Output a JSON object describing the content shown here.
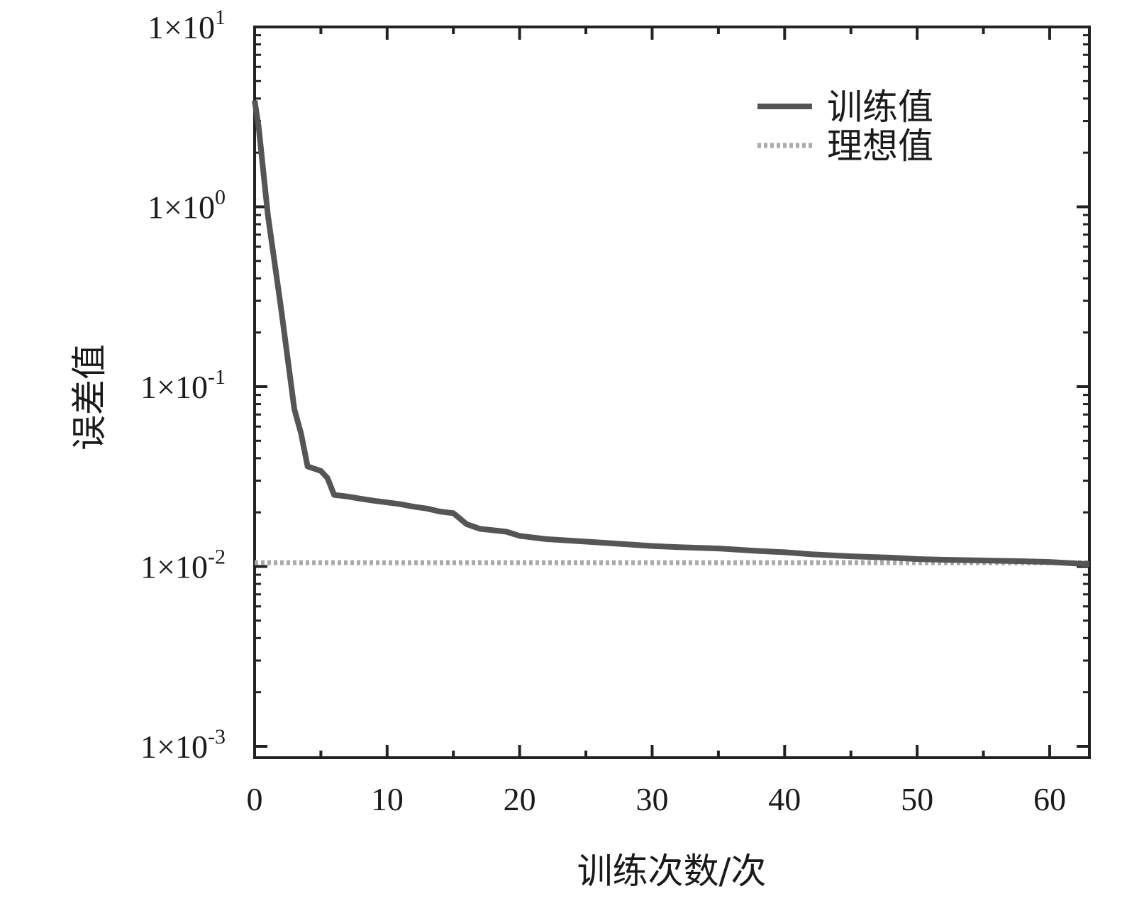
{
  "chart_data": {
    "type": "line",
    "title": "",
    "xlabel": "训练次数/次",
    "ylabel": "误差值",
    "x_scale": "linear",
    "y_scale": "log",
    "xlim": [
      0,
      63
    ],
    "ylim": [
      0.001,
      10
    ],
    "x_ticks": [
      0,
      10,
      20,
      30,
      40,
      50,
      60
    ],
    "x_tick_labels": [
      "0",
      "10",
      "20",
      "30",
      "40",
      "50",
      "60"
    ],
    "y_ticks": [
      10,
      1,
      0.1,
      0.01,
      0.001
    ],
    "y_tick_labels": [
      {
        "base": "1×10",
        "exp": "1"
      },
      {
        "base": "1×10",
        "exp": "0"
      },
      {
        "base": "1×10",
        "exp": "-1"
      },
      {
        "base": "1×10",
        "exp": "-2"
      },
      {
        "base": "1×10",
        "exp": "-3"
      }
    ],
    "grid": false,
    "legend_position": "top-right",
    "series": [
      {
        "name": "训练值",
        "style": "solid",
        "color": "#555555",
        "x": [
          0,
          0.3,
          1,
          2,
          3,
          3.5,
          4,
          4.5,
          5,
          5.5,
          6,
          7,
          8,
          9,
          10,
          11,
          12,
          13,
          14,
          15,
          16,
          17,
          18,
          19,
          20,
          22,
          24,
          26,
          28,
          30,
          32,
          35,
          38,
          40,
          42,
          45,
          48,
          50,
          52,
          55,
          58,
          60,
          62,
          63
        ],
        "y": [
          3.9,
          2.8,
          0.9,
          0.27,
          0.075,
          0.055,
          0.036,
          0.035,
          0.034,
          0.031,
          0.025,
          0.0245,
          0.0238,
          0.0232,
          0.0227,
          0.0222,
          0.0215,
          0.021,
          0.0202,
          0.0198,
          0.0172,
          0.0162,
          0.0159,
          0.0156,
          0.0148,
          0.0142,
          0.0139,
          0.0136,
          0.0133,
          0.013,
          0.0128,
          0.0126,
          0.0122,
          0.012,
          0.0117,
          0.0114,
          0.0112,
          0.011,
          0.0109,
          0.0108,
          0.0107,
          0.0106,
          0.0104,
          0.0103
        ]
      },
      {
        "name": "理想值",
        "style": "dotted",
        "color": "#aaaaaa",
        "x": [
          0,
          63
        ],
        "y": [
          0.0105,
          0.0105
        ]
      }
    ]
  }
}
